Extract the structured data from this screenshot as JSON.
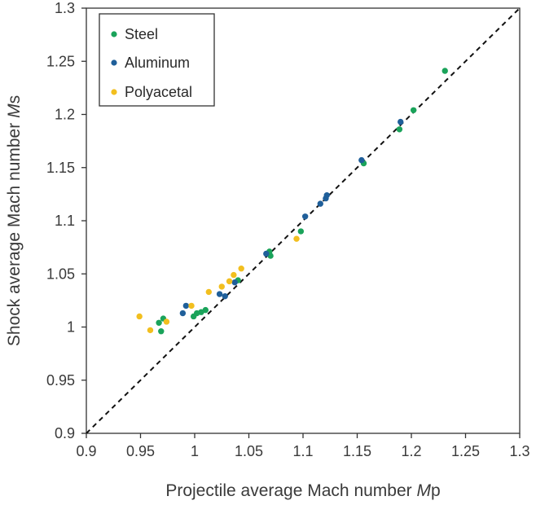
{
  "chart_data": {
    "type": "scatter",
    "xlabel_prefix": "Projectile average Mach number ",
    "xlabel_italic": "M",
    "xlabel_suffix": "p",
    "ylabel_prefix": "Shock average Mach number ",
    "ylabel_italic": "M",
    "ylabel_suffix": "s",
    "xlim": [
      0.9,
      1.3
    ],
    "ylim": [
      0.9,
      1.3
    ],
    "xticks": [
      "0.9",
      "0.95",
      "1",
      "1.05",
      "1.1",
      "1.15",
      "1.2",
      "1.25",
      "1.3"
    ],
    "yticks": [
      "0.9",
      "0.95",
      "1",
      "1.05",
      "1.1",
      "1.15",
      "1.2",
      "1.25",
      "1.3"
    ],
    "xtick_values": [
      0.9,
      0.95,
      1.0,
      1.05,
      1.1,
      1.15,
      1.2,
      1.25,
      1.3
    ],
    "ytick_values": [
      0.9,
      0.95,
      1.0,
      1.05,
      1.1,
      1.15,
      1.2,
      1.25,
      1.3
    ],
    "grid": false,
    "legend_position": "top-left",
    "reference_line": {
      "style": "dashed",
      "from": [
        0.9,
        0.9
      ],
      "to": [
        1.3,
        1.3
      ],
      "color": "#111111"
    },
    "series": [
      {
        "name": "Steel",
        "color": "#1aa35a",
        "points": [
          [
            0.967,
            1.004
          ],
          [
            0.969,
            0.996
          ],
          [
            0.971,
            1.008
          ],
          [
            0.999,
            1.01
          ],
          [
            1.002,
            1.013
          ],
          [
            1.006,
            1.014
          ],
          [
            1.01,
            1.016
          ],
          [
            1.04,
            1.044
          ],
          [
            1.069,
            1.071
          ],
          [
            1.07,
            1.067
          ],
          [
            1.098,
            1.09
          ],
          [
            1.156,
            1.154
          ],
          [
            1.189,
            1.186
          ],
          [
            1.202,
            1.204
          ],
          [
            1.231,
            1.241
          ]
        ]
      },
      {
        "name": "Aluminum",
        "color": "#1f5f9a",
        "points": [
          [
            0.989,
            1.013
          ],
          [
            0.992,
            1.02
          ],
          [
            1.023,
            1.031
          ],
          [
            1.028,
            1.029
          ],
          [
            1.037,
            1.042
          ],
          [
            1.066,
            1.069
          ],
          [
            1.102,
            1.104
          ],
          [
            1.116,
            1.116
          ],
          [
            1.121,
            1.121
          ],
          [
            1.122,
            1.124
          ],
          [
            1.154,
            1.157
          ],
          [
            1.19,
            1.193
          ]
        ]
      },
      {
        "name": "Polyacetal",
        "color": "#f2bf1f",
        "points": [
          [
            0.949,
            1.01
          ],
          [
            0.959,
            0.997
          ],
          [
            0.974,
            1.005
          ],
          [
            0.997,
            1.02
          ],
          [
            1.013,
            1.033
          ],
          [
            1.025,
            1.038
          ],
          [
            1.032,
            1.043
          ],
          [
            1.036,
            1.049
          ],
          [
            1.043,
            1.055
          ],
          [
            1.094,
            1.083
          ]
        ]
      }
    ]
  }
}
